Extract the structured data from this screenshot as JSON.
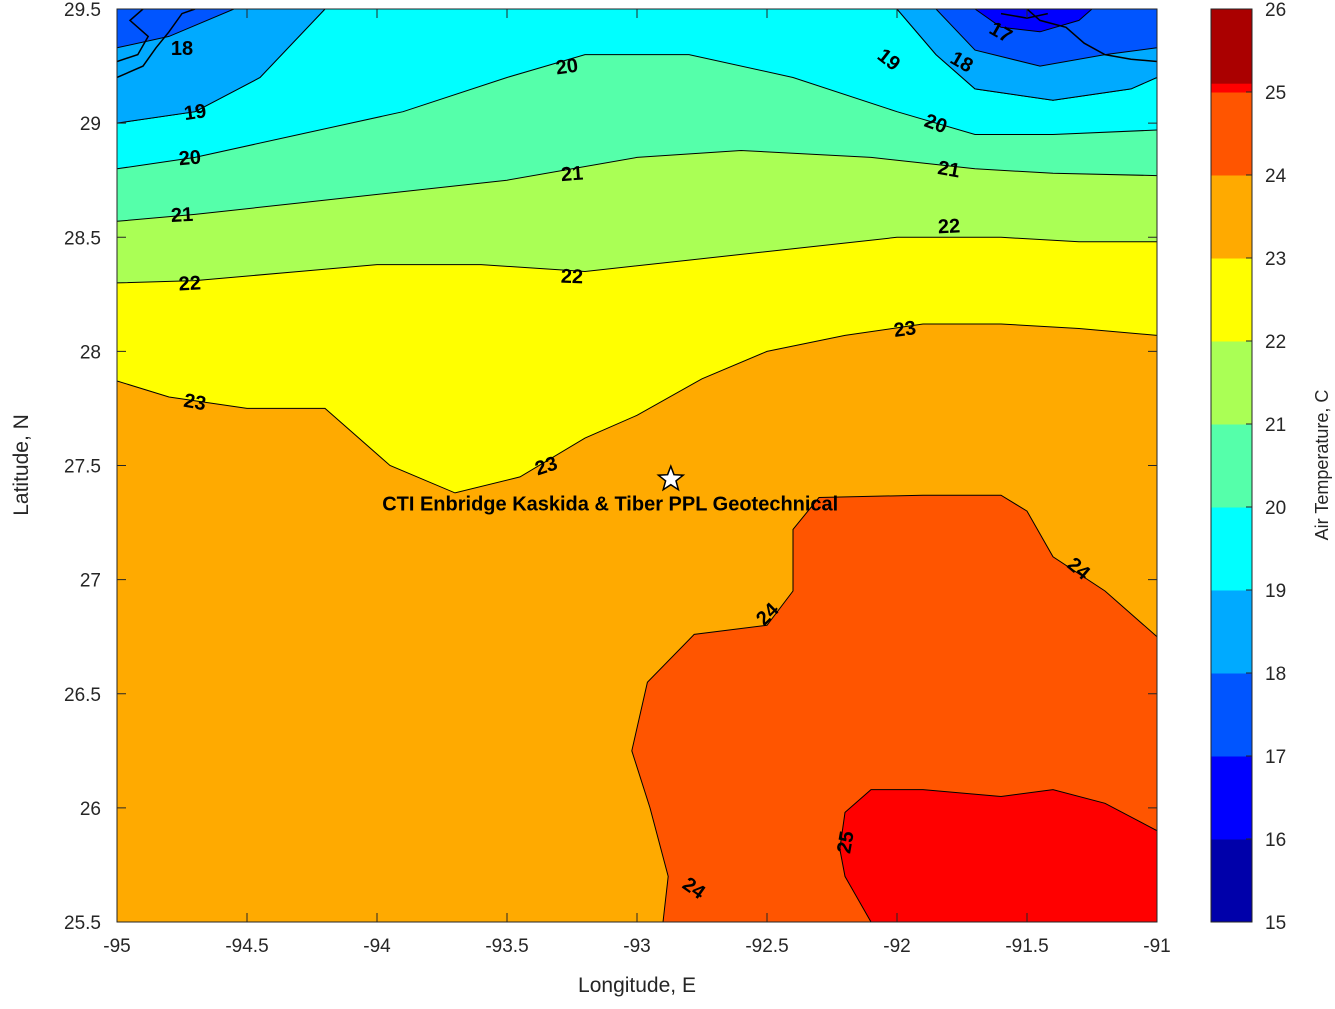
{
  "chart_data": {
    "type": "contour",
    "title": "",
    "xlabel": "Longitude, E",
    "ylabel": "Latitude, N",
    "xlim": [
      -95,
      -91
    ],
    "ylim": [
      25.5,
      29.5
    ],
    "x_ticks": [
      "-95",
      "-94.5",
      "-94",
      "-93.5",
      "-93",
      "-92.5",
      "-92",
      "-91.5",
      "-91"
    ],
    "y_ticks": [
      "25.5",
      "26",
      "26.5",
      "27",
      "27.5",
      "28",
      "28.5",
      "29",
      "29.5"
    ],
    "colorbar": {
      "label": "Air Temperature, C",
      "ticks": [
        "15",
        "16",
        "17",
        "18",
        "19",
        "20",
        "21",
        "22",
        "23",
        "24",
        "25",
        "26"
      ],
      "levels": [
        {
          "from": 15,
          "to": 16,
          "color": "#0000aa"
        },
        {
          "from": 16,
          "to": 17,
          "color": "#0000ff"
        },
        {
          "from": 17,
          "to": 18,
          "color": "#0055ff"
        },
        {
          "from": 18,
          "to": 19,
          "color": "#00aaff"
        },
        {
          "from": 19,
          "to": 20,
          "color": "#00ffff"
        },
        {
          "from": 20,
          "to": 21,
          "color": "#55ffaa"
        },
        {
          "from": 21,
          "to": 22,
          "color": "#aaff55"
        },
        {
          "from": 22,
          "to": 23,
          "color": "#ffff00"
        },
        {
          "from": 23,
          "to": 24,
          "color": "#ffaa00"
        },
        {
          "from": 24,
          "to": 25,
          "color": "#ff5500"
        },
        {
          "from": 25,
          "to": 26,
          "color": "#ff0000"
        }
      ]
    },
    "contours": [
      {
        "level": 24,
        "color": "#ff5500",
        "points": [
          [
            -92.9,
            25.5
          ],
          [
            -92.88,
            25.7
          ],
          [
            -92.95,
            26.0
          ],
          [
            -93.02,
            26.25
          ],
          [
            -92.96,
            26.55
          ],
          [
            -92.78,
            26.76
          ],
          [
            -92.5,
            26.8
          ],
          [
            -92.4,
            26.95
          ],
          [
            -92.4,
            27.22
          ],
          [
            -92.3,
            27.36
          ],
          [
            -91.9,
            27.37
          ],
          [
            -91.6,
            27.37
          ],
          [
            -91.5,
            27.3
          ],
          [
            -91.4,
            27.1
          ],
          [
            -91.2,
            26.95
          ],
          [
            -91.0,
            26.75
          ],
          [
            -91.0,
            25.5
          ]
        ]
      },
      {
        "level": 25,
        "color": "#ff0000",
        "points": [
          [
            -92.1,
            25.5
          ],
          [
            -92.2,
            25.7
          ],
          [
            -92.22,
            25.82
          ],
          [
            -92.2,
            25.98
          ],
          [
            -92.1,
            26.08
          ],
          [
            -91.9,
            26.08
          ],
          [
            -91.6,
            26.05
          ],
          [
            -91.4,
            26.08
          ],
          [
            -91.2,
            26.02
          ],
          [
            -91.0,
            25.9
          ],
          [
            -91.0,
            25.5
          ]
        ]
      }
    ],
    "isolines": [
      {
        "level": 23,
        "points": [
          [
            -95,
            27.87
          ],
          [
            -94.8,
            27.8
          ],
          [
            -94.5,
            27.75
          ],
          [
            -94.2,
            27.75
          ],
          [
            -93.95,
            27.5
          ],
          [
            -93.7,
            27.38
          ],
          [
            -93.45,
            27.45
          ],
          [
            -93.2,
            27.62
          ],
          [
            -93.0,
            27.72
          ],
          [
            -92.75,
            27.88
          ],
          [
            -92.5,
            28.0
          ],
          [
            -92.2,
            28.07
          ],
          [
            -91.9,
            28.12
          ],
          [
            -91.6,
            28.12
          ],
          [
            -91.3,
            28.1
          ],
          [
            -91.0,
            28.07
          ]
        ]
      },
      {
        "level": 22,
        "points": [
          [
            -95,
            28.3
          ],
          [
            -94.7,
            28.31
          ],
          [
            -94.3,
            28.35
          ],
          [
            -94.0,
            28.38
          ],
          [
            -93.6,
            28.38
          ],
          [
            -93.2,
            28.35
          ],
          [
            -92.8,
            28.4
          ],
          [
            -92.4,
            28.45
          ],
          [
            -92.0,
            28.5
          ],
          [
            -91.6,
            28.5
          ],
          [
            -91.3,
            28.48
          ],
          [
            -91.0,
            28.48
          ]
        ]
      },
      {
        "level": 21,
        "points": [
          [
            -95,
            28.57
          ],
          [
            -94.7,
            28.6
          ],
          [
            -94.3,
            28.65
          ],
          [
            -93.9,
            28.7
          ],
          [
            -93.5,
            28.75
          ],
          [
            -93.0,
            28.85
          ],
          [
            -92.6,
            28.88
          ],
          [
            -92.1,
            28.85
          ],
          [
            -91.7,
            28.8
          ],
          [
            -91.4,
            28.78
          ],
          [
            -91.0,
            28.77
          ]
        ]
      },
      {
        "level": 20,
        "points": [
          [
            -95,
            28.8
          ],
          [
            -94.7,
            28.85
          ],
          [
            -94.3,
            28.95
          ],
          [
            -93.9,
            29.05
          ],
          [
            -93.5,
            29.2
          ],
          [
            -93.2,
            29.3
          ],
          [
            -92.8,
            29.3
          ],
          [
            -92.4,
            29.2
          ],
          [
            -92.0,
            29.05
          ],
          [
            -91.7,
            28.95
          ],
          [
            -91.4,
            28.95
          ],
          [
            -91.0,
            28.97
          ]
        ]
      },
      {
        "level": 19,
        "points": [
          [
            -95,
            29.0
          ],
          [
            -94.7,
            29.05
          ],
          [
            -94.45,
            29.2
          ],
          [
            -94.2,
            29.5
          ]
        ]
      },
      {
        "level": 19,
        "points": [
          [
            -92.0,
            29.5
          ],
          [
            -91.85,
            29.3
          ],
          [
            -91.7,
            29.15
          ],
          [
            -91.4,
            29.1
          ],
          [
            -91.1,
            29.15
          ],
          [
            -91.0,
            29.2
          ]
        ]
      }
    ],
    "contour_labels": [
      {
        "text": "23",
        "x": -94.7,
        "y": 27.78,
        "rotate": 10
      },
      {
        "text": "23",
        "x": -93.35,
        "y": 27.5,
        "rotate": -18
      },
      {
        "text": "23",
        "x": -91.97,
        "y": 28.1,
        "rotate": -8
      },
      {
        "text": "22",
        "x": -94.72,
        "y": 28.3,
        "rotate": -3
      },
      {
        "text": "22",
        "x": -93.25,
        "y": 28.33,
        "rotate": 2
      },
      {
        "text": "22",
        "x": -91.8,
        "y": 28.55,
        "rotate": -3
      },
      {
        "text": "21",
        "x": -94.75,
        "y": 28.6,
        "rotate": -3
      },
      {
        "text": "21",
        "x": -93.25,
        "y": 28.78,
        "rotate": -4
      },
      {
        "text": "21",
        "x": -91.8,
        "y": 28.8,
        "rotate": 10
      },
      {
        "text": "20",
        "x": -94.72,
        "y": 28.85,
        "rotate": -5
      },
      {
        "text": "20",
        "x": -93.27,
        "y": 29.25,
        "rotate": -8
      },
      {
        "text": "20",
        "x": -91.85,
        "y": 29.0,
        "rotate": 20
      },
      {
        "text": "19",
        "x": -94.7,
        "y": 29.05,
        "rotate": -8
      },
      {
        "text": "19",
        "x": -92.03,
        "y": 29.28,
        "rotate": 38
      },
      {
        "text": "18",
        "x": -94.75,
        "y": 29.33,
        "rotate": 0
      },
      {
        "text": "18",
        "x": -91.75,
        "y": 29.27,
        "rotate": 30
      },
      {
        "text": "17",
        "x": -91.6,
        "y": 29.4,
        "rotate": 30
      },
      {
        "text": "24",
        "x": -92.5,
        "y": 26.85,
        "rotate": -45
      },
      {
        "text": "24",
        "x": -91.3,
        "y": 27.05,
        "rotate": 40
      },
      {
        "text": "24",
        "x": -92.78,
        "y": 25.65,
        "rotate": 35
      },
      {
        "text": "25",
        "x": -92.2,
        "y": 25.85,
        "rotate": -80
      }
    ],
    "marker": {
      "shape": "star",
      "x": -92.87,
      "y": 27.44
    },
    "annotations": [
      {
        "text": "CTI Enbridge  Kaskida & Tiber PPL Geotechnical",
        "x": -93.98,
        "y": 27.33
      }
    ]
  }
}
